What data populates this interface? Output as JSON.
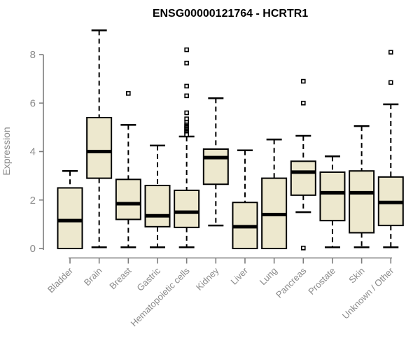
{
  "chart_data": {
    "type": "boxplot",
    "title": "ENSG00000121764 - HCRTR1",
    "xlabel": "",
    "ylabel": "Expression",
    "ylim": [
      0,
      9.1
    ],
    "yticks": [
      0,
      2,
      4,
      6,
      8
    ],
    "grid": false,
    "legend": "none",
    "categories": [
      "Bladder",
      "Brain",
      "Breast",
      "Gastric",
      "Hematopoietic cells",
      "Kidney",
      "Liver",
      "Lung",
      "Pancreas",
      "Prostate",
      "Skin",
      "Unknown / Other"
    ],
    "series": [
      {
        "name": "Bladder",
        "whisker_low": 0,
        "q1": 0,
        "median": 1.15,
        "q3": 2.5,
        "whisker_high": 3.2,
        "outliers": []
      },
      {
        "name": "Brain",
        "whisker_low": 0.05,
        "q1": 2.9,
        "median": 4.0,
        "q3": 5.4,
        "whisker_high": 9.0,
        "outliers": []
      },
      {
        "name": "Breast",
        "whisker_low": 0.05,
        "q1": 1.2,
        "median": 1.85,
        "q3": 2.85,
        "whisker_high": 5.1,
        "outliers": [
          6.4
        ]
      },
      {
        "name": "Gastric",
        "whisker_low": 0.05,
        "q1": 0.9,
        "median": 1.35,
        "q3": 2.6,
        "whisker_high": 4.25,
        "outliers": []
      },
      {
        "name": "Hematopoietic cells",
        "whisker_low": 0.05,
        "q1": 0.87,
        "median": 1.5,
        "q3": 2.4,
        "whisker_high": 4.62,
        "outliers": [
          8.2,
          7.65,
          6.7,
          6.3,
          5.6,
          5.35,
          5.2,
          5.1,
          5.05,
          5.0,
          4.95,
          4.9,
          4.85,
          4.8,
          4.75,
          4.7
        ]
      },
      {
        "name": "Kidney",
        "whisker_low": 0.95,
        "q1": 2.65,
        "median": 3.75,
        "q3": 4.1,
        "whisker_high": 6.2,
        "outliers": []
      },
      {
        "name": "Liver",
        "whisker_low": 0,
        "q1": 0,
        "median": 0.9,
        "q3": 1.9,
        "whisker_high": 4.05,
        "outliers": []
      },
      {
        "name": "Lung",
        "whisker_low": 0,
        "q1": 0,
        "median": 1.4,
        "q3": 2.9,
        "whisker_high": 4.5,
        "outliers": []
      },
      {
        "name": "Pancreas",
        "whisker_low": 1.5,
        "q1": 2.2,
        "median": 3.15,
        "q3": 3.6,
        "whisker_high": 4.65,
        "outliers": [
          6.9,
          6.0,
          0.02
        ]
      },
      {
        "name": "Prostate",
        "whisker_low": 0.05,
        "q1": 1.15,
        "median": 2.3,
        "q3": 3.15,
        "whisker_high": 3.8,
        "outliers": []
      },
      {
        "name": "Skin",
        "whisker_low": 0.05,
        "q1": 0.65,
        "median": 2.3,
        "q3": 3.2,
        "whisker_high": 5.05,
        "outliers": []
      },
      {
        "name": "Unknown / Other",
        "whisker_low": 0.05,
        "q1": 0.95,
        "median": 1.9,
        "q3": 2.95,
        "whisker_high": 5.95,
        "outliers": [
          8.1,
          6.85
        ]
      }
    ],
    "colors": {
      "background": "#ffffff",
      "box_fill": "#EDE8CE",
      "box_border": "#000000",
      "median": "#000000",
      "whisker": "#000000",
      "outlier_fill": "#ffffff",
      "outlier_border": "#000000",
      "axis_line": "#7d7d7d",
      "axis_text": "#8a8a8a",
      "title": "#000000"
    }
  }
}
